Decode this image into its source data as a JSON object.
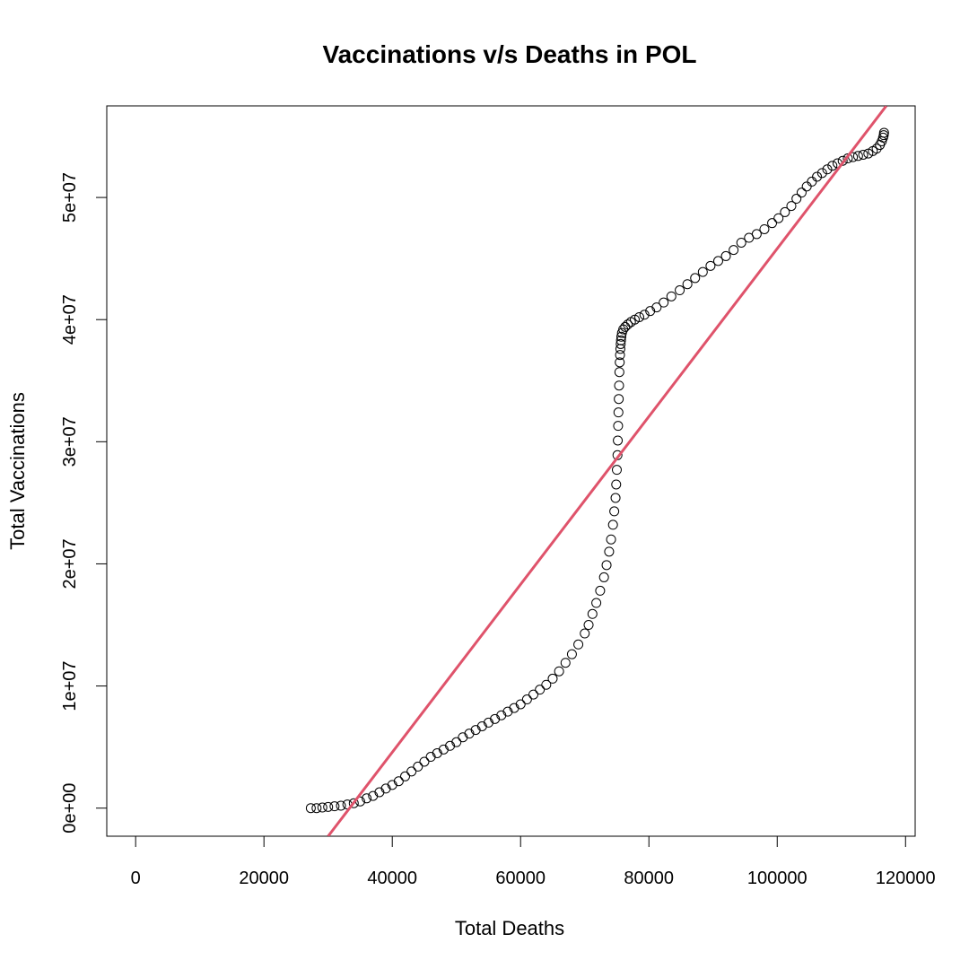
{
  "chart_data": {
    "type": "scatter",
    "title": "Vaccinations v/s Deaths in POL",
    "xlabel": "Total Deaths",
    "ylabel": "Total Vaccinations",
    "xlim": [
      -4500,
      121500
    ],
    "ylim": [
      -2300000,
      57500000
    ],
    "xticks": [
      0,
      20000,
      40000,
      60000,
      80000,
      100000,
      120000
    ],
    "xtick_labels": [
      "0",
      "20000",
      "40000",
      "60000",
      "80000",
      "100000",
      "120000"
    ],
    "yticks": [
      0,
      10000000,
      20000000,
      30000000,
      40000000,
      50000000
    ],
    "ytick_labels": [
      "0e+00",
      "1e+07",
      "2e+07",
      "3e+07",
      "4e+07",
      "5e+07"
    ],
    "grid": false,
    "point_style": "open-circle",
    "point_color": "#000000",
    "fit_line": {
      "color": "#df536b",
      "points": [
        [
          30000,
          -2300000
        ],
        [
          117000,
          57500000
        ]
      ]
    },
    "series": [
      {
        "x": [
          27300,
          28200,
          29100,
          30000,
          31000,
          32000,
          33000,
          34000,
          35000,
          36000,
          37000,
          38000,
          39000,
          40000,
          41000,
          42000,
          43000,
          44000,
          45000,
          46000,
          47000,
          48000,
          49000,
          50000,
          51000,
          52000,
          53000,
          54000,
          55000,
          56000,
          57000,
          58000,
          59000,
          60000,
          61000,
          62000,
          63000,
          64000,
          65000,
          66000,
          67000,
          68000,
          69000,
          70000,
          70600,
          71200,
          71800,
          72400,
          73000,
          73400,
          73800,
          74100,
          74400,
          74600,
          74800,
          74900,
          75000,
          75100,
          75150,
          75200,
          75250,
          75300,
          75350,
          75400,
          75450,
          75500,
          75550,
          75600,
          75650,
          75700,
          75800,
          76000,
          76300,
          76700,
          77200,
          77800,
          78500,
          79300,
          80200,
          81200,
          82300,
          83500,
          84800,
          86000,
          87200,
          88400,
          89600,
          90800,
          92000,
          93200,
          94400,
          95600,
          96800,
          98000,
          99200,
          100200,
          101200,
          102200,
          103000,
          103800,
          104600,
          105400,
          106200,
          107000,
          107800,
          108600,
          109400,
          110200,
          111000,
          111800,
          112600,
          113400,
          114200,
          114900,
          115500,
          116000,
          116300,
          116500,
          116600,
          116650
        ],
        "y": [
          0,
          0,
          50000,
          100000,
          150000,
          200000,
          300000,
          400000,
          550000,
          800000,
          1000000,
          1300000,
          1600000,
          1900000,
          2200000,
          2600000,
          3000000,
          3400000,
          3800000,
          4200000,
          4500000,
          4800000,
          5100000,
          5400000,
          5800000,
          6100000,
          6400000,
          6700000,
          7000000,
          7300000,
          7600000,
          7900000,
          8200000,
          8500000,
          8900000,
          9300000,
          9700000,
          10100000,
          10600000,
          11200000,
          11900000,
          12600000,
          13400000,
          14300000,
          15000000,
          15900000,
          16800000,
          17800000,
          18900000,
          19900000,
          21000000,
          22000000,
          23200000,
          24300000,
          25400000,
          26500000,
          27700000,
          28900000,
          30100000,
          31300000,
          32400000,
          33500000,
          34600000,
          35700000,
          36500000,
          37100000,
          37600000,
          38000000,
          38300000,
          38600000,
          38900000,
          39200000,
          39400000,
          39600000,
          39800000,
          40000000,
          40200000,
          40400000,
          40700000,
          41000000,
          41400000,
          41900000,
          42400000,
          42900000,
          43400000,
          43900000,
          44400000,
          44800000,
          45200000,
          45700000,
          46300000,
          46700000,
          47000000,
          47400000,
          47900000,
          48300000,
          48800000,
          49300000,
          49900000,
          50400000,
          50900000,
          51300000,
          51700000,
          52000000,
          52300000,
          52600000,
          52800000,
          53000000,
          53200000,
          53300000,
          53400000,
          53500000,
          53600000,
          53800000,
          54000000,
          54300000,
          54600000,
          54900000,
          55100000,
          55300000
        ]
      }
    ]
  }
}
